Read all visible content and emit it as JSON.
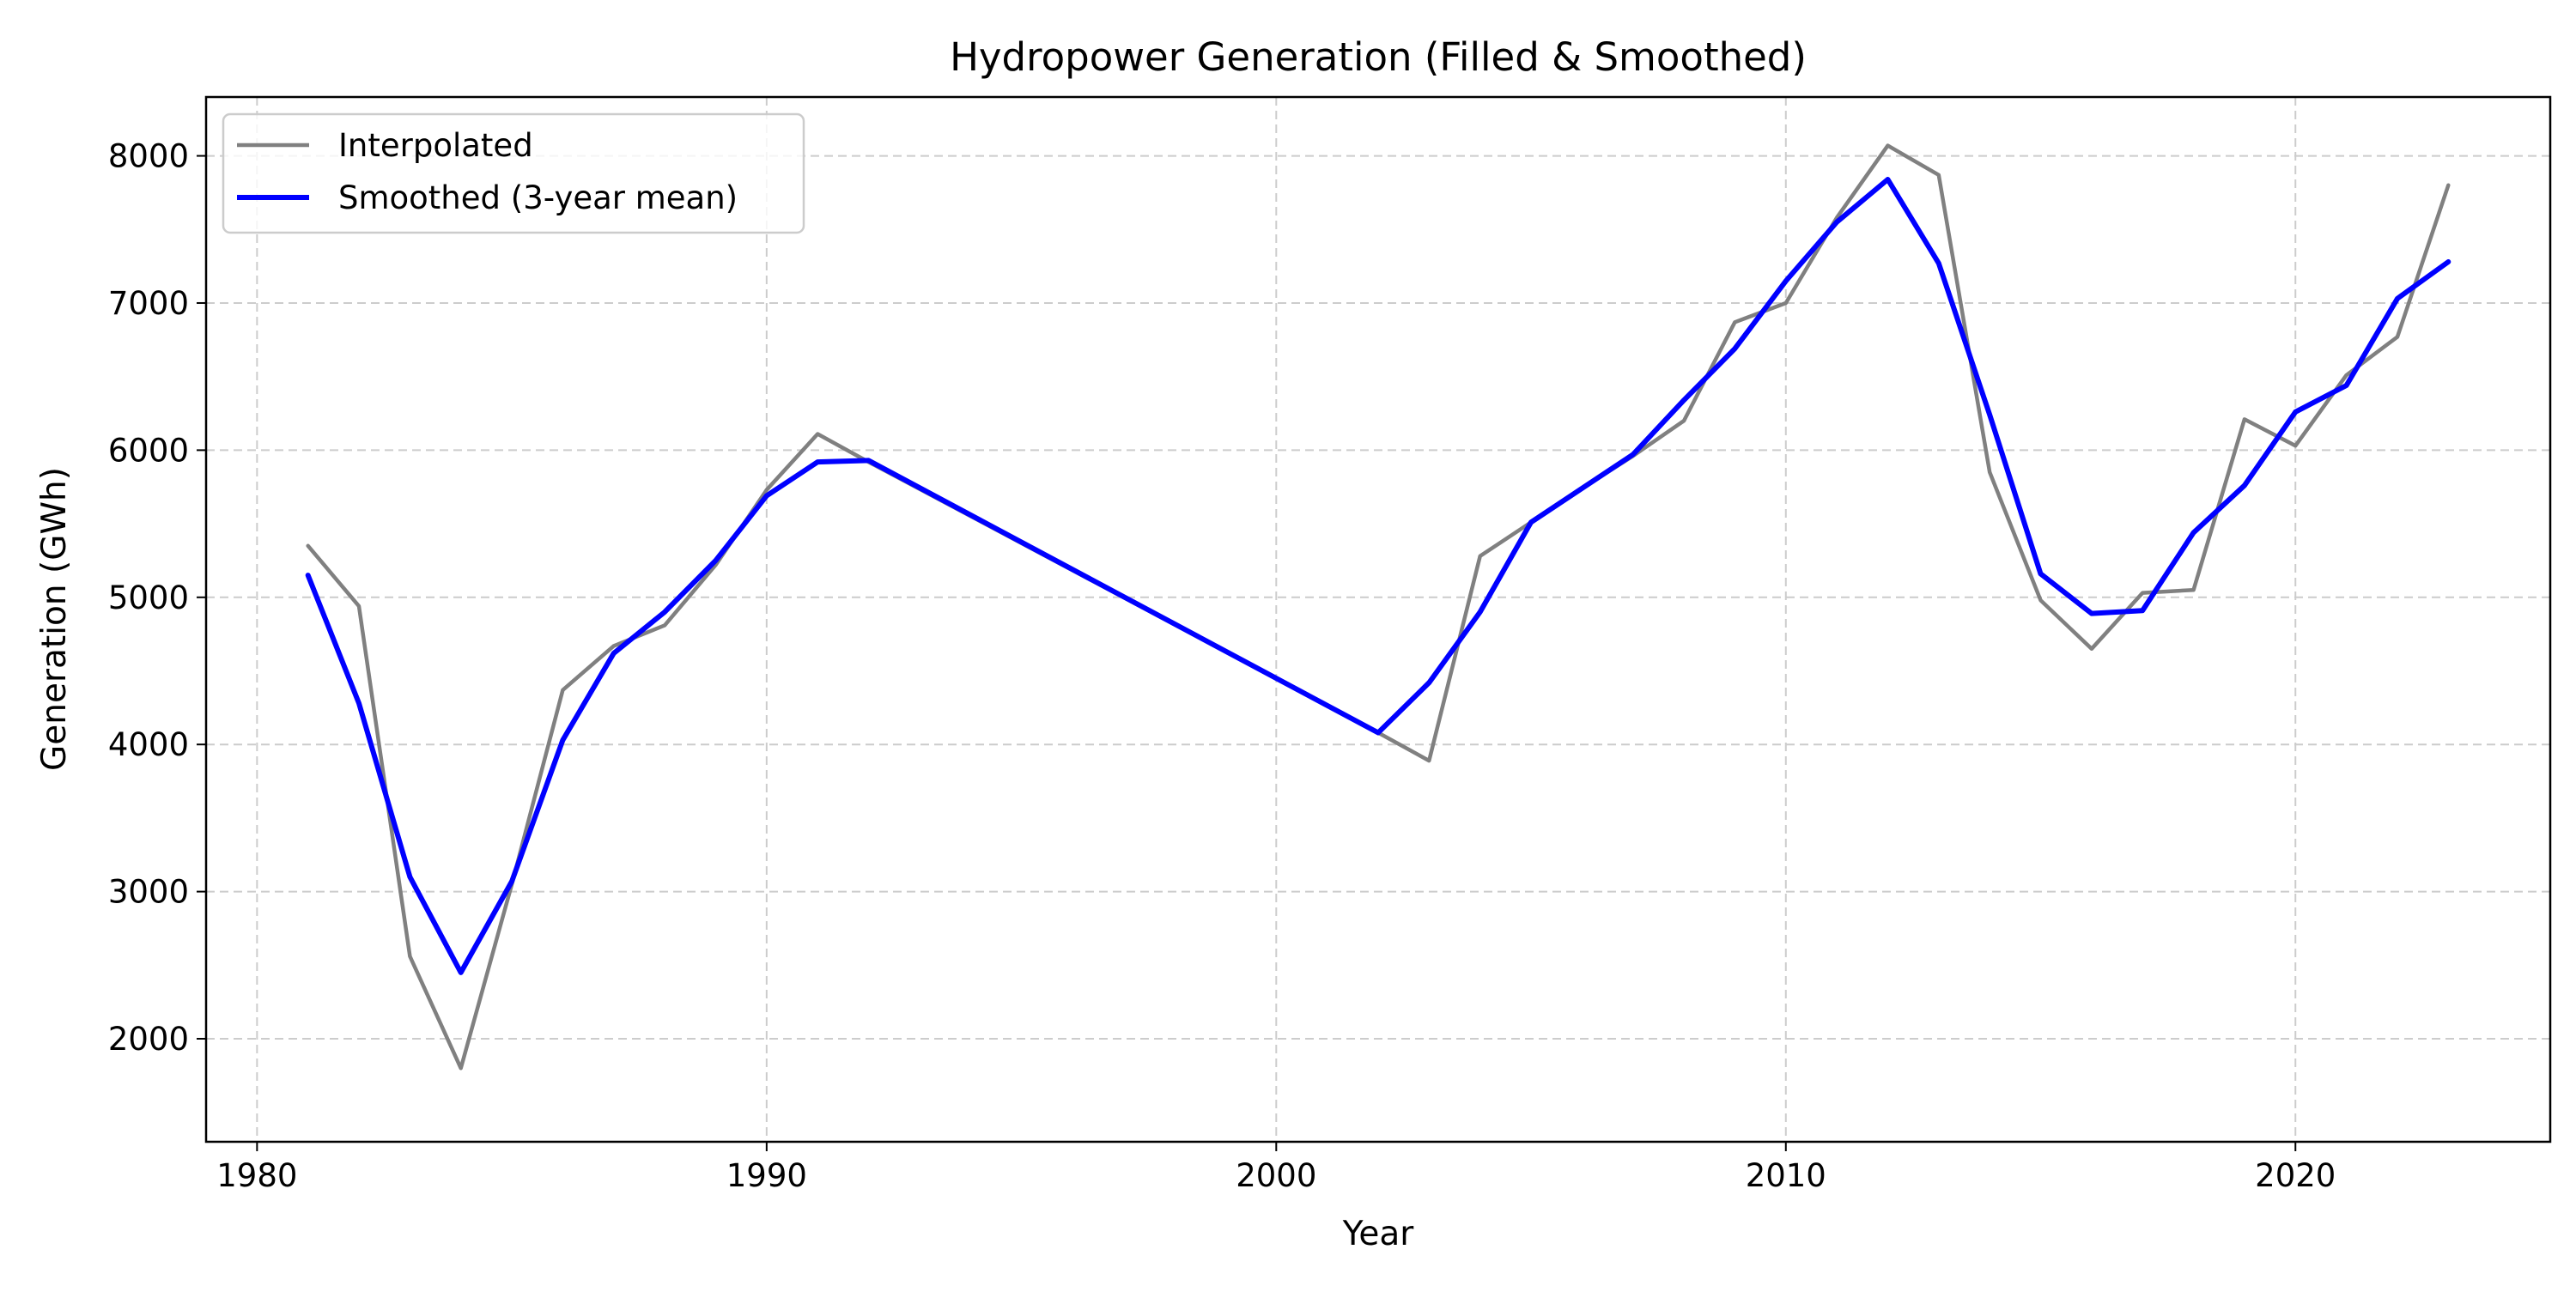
{
  "chart_data": {
    "type": "line",
    "title": "Hydropower Generation (Filled & Smoothed)",
    "xlabel": "Year",
    "ylabel": "Generation (GWh)",
    "xlim": [
      1979,
      2025
    ],
    "ylim": [
      1300,
      8400
    ],
    "x_ticks": [
      1980,
      1990,
      2000,
      2010,
      2020
    ],
    "y_ticks": [
      2000,
      3000,
      4000,
      5000,
      6000,
      7000,
      8000
    ],
    "grid": true,
    "legend_position": "top-left",
    "series": [
      {
        "name": "Interpolated",
        "color": "#808080",
        "x": [
          1981,
          1982,
          1983,
          1984,
          1985,
          1986,
          1987,
          1988,
          1989,
          1990,
          1991,
          1992,
          2002,
          2003,
          2004,
          2005,
          2006,
          2007,
          2008,
          2009,
          2010,
          2011,
          2012,
          2013,
          2014,
          2015,
          2016,
          2017,
          2018,
          2019,
          2020,
          2021,
          2022,
          2023
        ],
        "y": [
          5350,
          4940,
          2560,
          1800,
          3050,
          4370,
          4670,
          4810,
          5220,
          5730,
          6110,
          5920,
          4080,
          3890,
          5280,
          5510,
          5740,
          5960,
          6200,
          6870,
          7000,
          7580,
          8070,
          7870,
          5850,
          4980,
          4650,
          5030,
          5050,
          6210,
          6030,
          6510,
          6770,
          7800
        ]
      },
      {
        "name": "Smoothed (3-year mean)",
        "color": "#0000ff",
        "x": [
          1981,
          1982,
          1983,
          1984,
          1985,
          1986,
          1987,
          1988,
          1989,
          1990,
          1991,
          1992,
          2002,
          2003,
          2004,
          2005,
          2006,
          2007,
          2008,
          2009,
          2010,
          2011,
          2012,
          2013,
          2014,
          2015,
          2016,
          2017,
          2018,
          2019,
          2020,
          2021,
          2022,
          2023
        ],
        "y": [
          5150,
          4280,
          3100,
          2450,
          3070,
          4030,
          4620,
          4900,
          5250,
          5690,
          5920,
          5930,
          4080,
          4420,
          4900,
          5510,
          5740,
          5970,
          6340,
          6690,
          7150,
          7550,
          7840,
          7270,
          6240,
          5160,
          4890,
          4910,
          5440,
          5760,
          6260,
          6440,
          7030,
          7280
        ]
      }
    ]
  }
}
